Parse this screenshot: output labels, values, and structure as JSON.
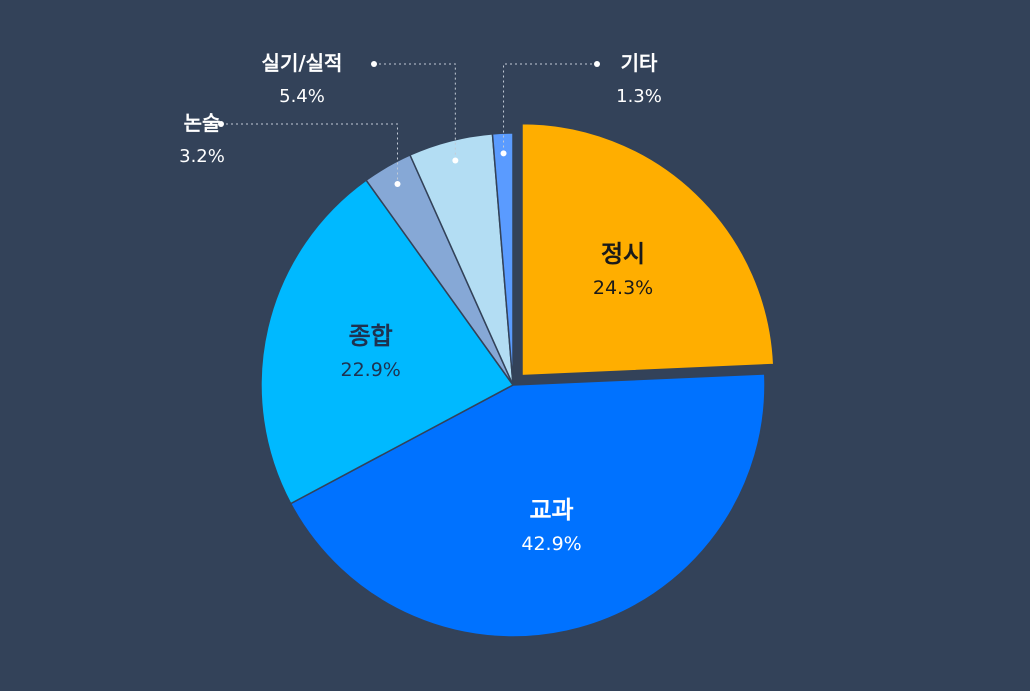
{
  "chart_data": {
    "type": "pie",
    "title": "",
    "start_angle_deg": 0,
    "direction": "clockwise",
    "exploded_slice": "정시",
    "slices": [
      {
        "name": "정시",
        "value": 24.3,
        "pct_label": "24.3%",
        "color": "#FFAE00",
        "text_color": "#1a1a1a",
        "label_position": "inside"
      },
      {
        "name": "교과",
        "value": 42.9,
        "pct_label": "42.9%",
        "color": "#0072FF",
        "text_color": "#ffffff",
        "label_position": "inside"
      },
      {
        "name": "종합",
        "value": 22.9,
        "pct_label": "22.9%",
        "color": "#00B9FF",
        "text_color": "#1e3250",
        "label_position": "inside"
      },
      {
        "name": "논술",
        "value": 3.2,
        "pct_label": "3.2%",
        "color": "#86A8D6",
        "text_color": "#ffffff",
        "label_position": "outside"
      },
      {
        "name": "실기/실적",
        "value": 5.4,
        "pct_label": "5.4%",
        "color": "#B3DDF3",
        "text_color": "#ffffff",
        "label_position": "outside"
      },
      {
        "name": "기타",
        "value": 1.3,
        "pct_label": "1.3%",
        "color": "#5A9BFF",
        "text_color": "#ffffff",
        "label_position": "outside"
      }
    ]
  }
}
